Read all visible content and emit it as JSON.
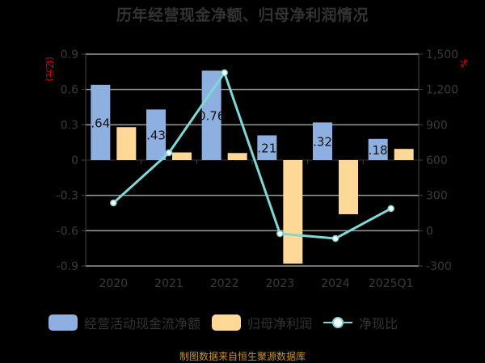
{
  "title": "历年经营现金净额、归母净利润情况",
  "source": "制图数据来自恒生聚源数据库",
  "left_axis": {
    "unit": "(亿元)",
    "ticks": [
      "0.9",
      "0.6",
      "0.3",
      "0",
      "-0.3",
      "-0.6",
      "-0.9"
    ]
  },
  "right_axis": {
    "unit": "%",
    "ticks": [
      "1,500",
      "1,200",
      "900",
      "600",
      "300",
      "0",
      "-300"
    ]
  },
  "legend": [
    {
      "label": "经营活动现金流净额",
      "color": "#8eb0e0"
    },
    {
      "label": "归母净利润",
      "color": "#fdd896"
    },
    {
      "label": "净现比",
      "color": "#7fd8d6"
    }
  ],
  "chart_data": {
    "type": "bar",
    "title": "历年经营现金净额、归母净利润情况",
    "categories": [
      "2020",
      "2021",
      "2022",
      "2023",
      "2024",
      "2025Q1"
    ],
    "series": [
      {
        "name": "经营活动现金流净额",
        "type": "bar",
        "axis": "left",
        "color": "#8eb0e0",
        "values": [
          0.64,
          0.43,
          0.76,
          0.21,
          0.32,
          0.18
        ],
        "labels": [
          ".64",
          ".43",
          "0.76",
          ".21",
          ".32",
          ".18"
        ]
      },
      {
        "name": "归母净利润",
        "type": "bar",
        "axis": "left",
        "color": "#fdd896",
        "values": [
          0.28,
          0.065,
          0.06,
          -0.88,
          -0.46,
          0.095
        ]
      },
      {
        "name": "净现比",
        "type": "line",
        "axis": "right",
        "color": "#7fd8d6",
        "values": [
          236,
          662,
          1342,
          -25,
          -66,
          188
        ]
      }
    ],
    "ylabel_left": "(亿元)",
    "ylim_left": [
      -0.9,
      0.9
    ],
    "ylabel_right": "%",
    "ylim_right": [
      -300,
      1500
    ],
    "grid": true,
    "legend_position": "bottom"
  }
}
